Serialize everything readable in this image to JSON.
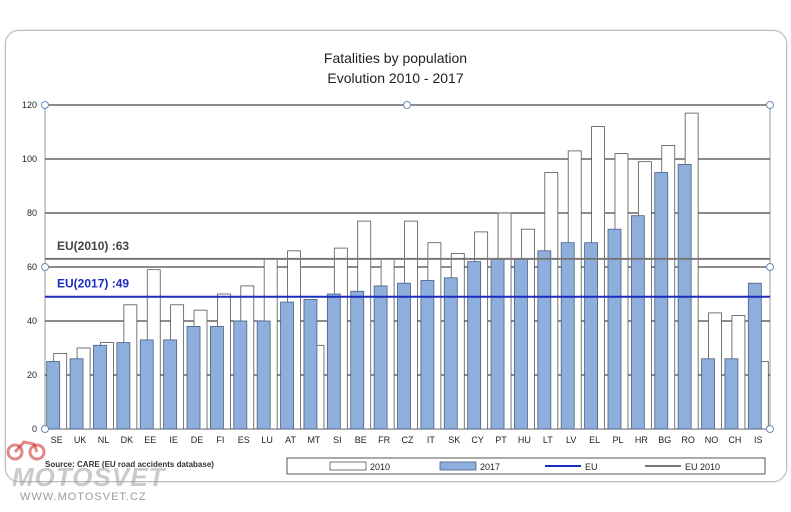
{
  "chart_data": {
    "type": "bar",
    "title": "Fatalities by population",
    "subtitle": "Evolution 2010 - 2017",
    "categories": [
      "SE",
      "UK",
      "NL",
      "DK",
      "EE",
      "IE",
      "DE",
      "FI",
      "ES",
      "LU",
      "AT",
      "MT",
      "SI",
      "BE",
      "FR",
      "CZ",
      "IT",
      "SK",
      "CY",
      "PT",
      "HU",
      "LT",
      "LV",
      "EL",
      "PL",
      "HR",
      "BG",
      "RO",
      "NO",
      "CH",
      "IS"
    ],
    "series": [
      {
        "name": "2010",
        "color": "#ffffff",
        "values": [
          28,
          30,
          32,
          46,
          59,
          46,
          44,
          50,
          53,
          63,
          66,
          31,
          67,
          77,
          63,
          77,
          69,
          65,
          73,
          80,
          74,
          95,
          103,
          112,
          102,
          99,
          105,
          117,
          43,
          42,
          25
        ]
      },
      {
        "name": "2017",
        "color": "#8eaedc",
        "values": [
          25,
          26,
          31,
          32,
          33,
          33,
          38,
          38,
          40,
          40,
          47,
          48,
          50,
          51,
          53,
          54,
          55,
          56,
          62,
          63,
          63,
          66,
          69,
          69,
          74,
          79,
          95,
          98,
          26,
          26,
          54
        ]
      }
    ],
    "reference_lines": [
      {
        "name": "EU",
        "label": "EU(2017) :49",
        "value": 49,
        "color": "#1c2dbd"
      },
      {
        "name": "EU 2010",
        "label": "EU(2010) :63",
        "value": 63,
        "color": "#777777"
      }
    ],
    "yticks": [
      "0",
      "20",
      "40",
      "60",
      "80",
      "100",
      "120"
    ],
    "ylim": [
      0,
      120
    ],
    "grid": true,
    "legend_position": "bottom",
    "source": "Source: CARE (EU road accidents database)"
  },
  "watermark": {
    "logo": "MOTOSVET",
    "url": "WWW.MOTOSVET.CZ"
  }
}
